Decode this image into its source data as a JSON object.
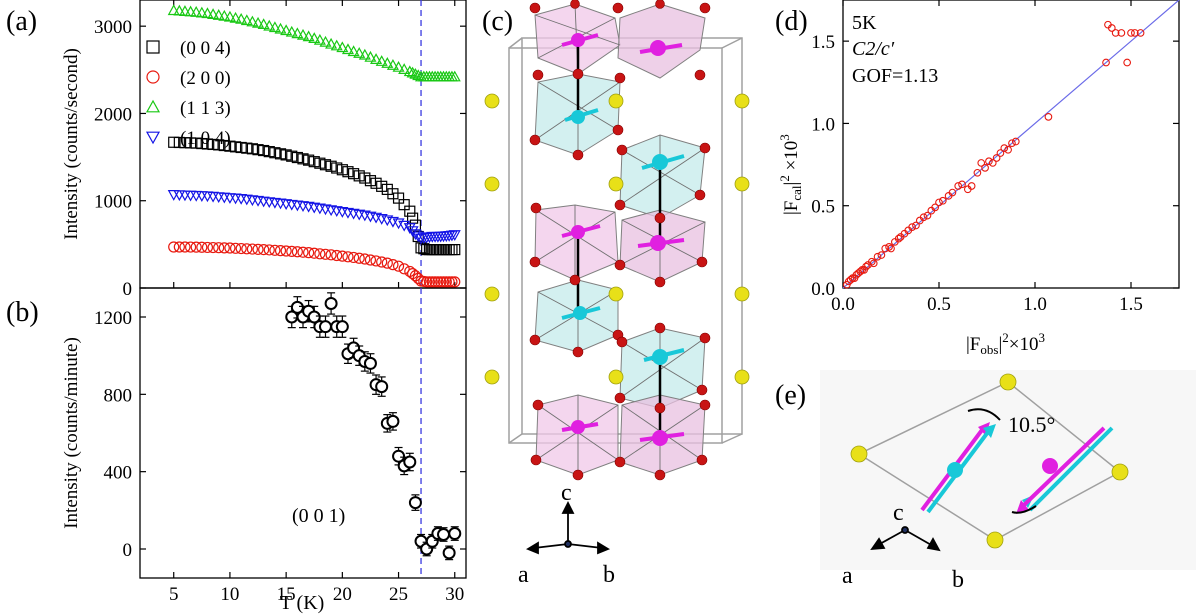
{
  "chart_data": [
    {
      "panel_label": "(a)",
      "type": "scatter",
      "xlim": [
        2,
        31
      ],
      "ylim": [
        0,
        3300
      ],
      "x_ticks": [
        "5",
        "10",
        "15",
        "20",
        "25",
        "30"
      ],
      "y_ticks": [
        "0",
        "1000",
        "2000",
        "3000"
      ],
      "ylabel": "Intensity (counts/second)",
      "vline_x": 27,
      "series": [
        {
          "name": "(0 0 4)",
          "marker": "square",
          "color": "#000000",
          "x": [
            5,
            6,
            7,
            8,
            9,
            10,
            11,
            12,
            13,
            14,
            15,
            16,
            17,
            18,
            19,
            20,
            21,
            22,
            23,
            24,
            25,
            26,
            26.5,
            27,
            27.5,
            28,
            28.5,
            29,
            29.5,
            30
          ],
          "y": [
            1670,
            1665,
            1660,
            1650,
            1640,
            1625,
            1610,
            1595,
            1575,
            1550,
            1525,
            1495,
            1465,
            1430,
            1395,
            1355,
            1310,
            1260,
            1200,
            1130,
            1030,
            880,
            720,
            460,
            440,
            440,
            440,
            440,
            440,
            440
          ]
        },
        {
          "name": "(2 0 0)",
          "marker": "circle",
          "color": "#e8190f",
          "x": [
            5,
            6,
            7,
            8,
            9,
            10,
            11,
            12,
            13,
            14,
            15,
            16,
            17,
            18,
            19,
            20,
            21,
            22,
            23,
            24,
            25,
            26,
            26.5,
            27,
            27.5,
            28,
            28.5,
            29,
            29.5,
            30
          ],
          "y": [
            470,
            470,
            468,
            465,
            462,
            458,
            452,
            446,
            440,
            432,
            424,
            415,
            405,
            392,
            380,
            365,
            350,
            332,
            310,
            285,
            250,
            190,
            140,
            80,
            70,
            70,
            70,
            70,
            70,
            70
          ]
        },
        {
          "name": "(1 1 3)",
          "marker": "triangle-up",
          "color": "#19c814",
          "x": [
            5,
            6,
            7,
            8,
            9,
            10,
            11,
            12,
            13,
            14,
            15,
            16,
            17,
            18,
            19,
            20,
            21,
            22,
            23,
            24,
            25,
            26,
            26.5,
            27,
            27.5,
            28,
            28.5,
            29,
            29.5,
            30
          ],
          "y": [
            3180,
            3170,
            3160,
            3145,
            3125,
            3105,
            3080,
            3050,
            3020,
            2985,
            2950,
            2915,
            2880,
            2840,
            2795,
            2755,
            2710,
            2670,
            2620,
            2575,
            2530,
            2480,
            2450,
            2420,
            2420,
            2420,
            2420,
            2420,
            2420,
            2420
          ]
        },
        {
          "name": "(1 0 4)",
          "marker": "triangle-down",
          "color": "#1414e6",
          "x": [
            5,
            6,
            7,
            8,
            9,
            10,
            11,
            12,
            13,
            14,
            15,
            16,
            17,
            18,
            19,
            20,
            21,
            22,
            23,
            24,
            25,
            26,
            26.5,
            27,
            27.5,
            28,
            28.5,
            29,
            29.5,
            30
          ],
          "y": [
            1070,
            1065,
            1060,
            1055,
            1045,
            1035,
            1025,
            1010,
            995,
            980,
            965,
            950,
            935,
            915,
            895,
            875,
            855,
            835,
            810,
            780,
            745,
            690,
            620,
            570,
            580,
            590,
            590,
            595,
            600,
            610
          ]
        }
      ]
    },
    {
      "panel_label": "(b)",
      "type": "scatter",
      "xlim": [
        2,
        31
      ],
      "ylim": [
        -150,
        1350
      ],
      "x_ticks": [
        "5",
        "10",
        "15",
        "20",
        "25",
        "30"
      ],
      "y_ticks": [
        "0",
        "400",
        "800",
        "1200"
      ],
      "xlabel": "T (K)",
      "ylabel": "Intensity (counts/minute)",
      "annotation": "(0 0 1)",
      "vline_x": 27,
      "series": [
        {
          "name": "(0 0 1)",
          "marker": "circle",
          "color": "#000000",
          "x": [
            15.5,
            16,
            16.5,
            17,
            17.5,
            18,
            18.5,
            19,
            19.5,
            20,
            20.5,
            21,
            21.5,
            22,
            22.5,
            23,
            23.5,
            24,
            24.5,
            25,
            25.5,
            26,
            26.5,
            27,
            27.5,
            28,
            28.5,
            29,
            29.5,
            30
          ],
          "y": [
            1200,
            1250,
            1200,
            1230,
            1200,
            1150,
            1150,
            1270,
            1150,
            1150,
            1010,
            1040,
            1000,
            970,
            960,
            850,
            840,
            650,
            660,
            480,
            430,
            450,
            240,
            40,
            0,
            40,
            80,
            75,
            -20,
            80
          ],
          "err": [
            55,
            55,
            55,
            55,
            55,
            55,
            55,
            55,
            55,
            55,
            50,
            50,
            50,
            50,
            50,
            50,
            50,
            45,
            45,
            45,
            45,
            45,
            40,
            35,
            35,
            35,
            35,
            35,
            35,
            35
          ]
        }
      ]
    },
    {
      "panel_label": "(d)",
      "type": "scatter",
      "xlim": [
        0,
        1.75
      ],
      "ylim": [
        0,
        1.75
      ],
      "x_ticks": [
        "0.0",
        "0.5",
        "1.0",
        "1.5"
      ],
      "y_ticks": [
        "0.0",
        "0.5",
        "1.0",
        "1.5"
      ],
      "legend_lines": [
        "5K",
        "C2/c′",
        "GOF=1.13"
      ],
      "color": "#e8190f",
      "fit_line_color": "#6a6ae8",
      "x": [
        0.02,
        0.03,
        0.04,
        0.05,
        0.06,
        0.07,
        0.08,
        0.09,
        0.1,
        0.11,
        0.12,
        0.13,
        0.15,
        0.16,
        0.18,
        0.2,
        0.22,
        0.24,
        0.25,
        0.27,
        0.29,
        0.3,
        0.32,
        0.34,
        0.36,
        0.38,
        0.4,
        0.42,
        0.44,
        0.46,
        0.48,
        0.5,
        0.52,
        0.55,
        0.57,
        0.6,
        0.62,
        0.65,
        0.67,
        0.7,
        0.72,
        0.74,
        0.76,
        0.78,
        0.8,
        0.82,
        0.84,
        0.86,
        0.88,
        0.9,
        1.07,
        1.37,
        1.38,
        1.4,
        1.42,
        1.45,
        1.5,
        1.52,
        1.48,
        1.55
      ],
      "y": [
        0.02,
        0.04,
        0.05,
        0.06,
        0.06,
        0.08,
        0.09,
        0.1,
        0.11,
        0.11,
        0.13,
        0.14,
        0.16,
        0.15,
        0.19,
        0.2,
        0.24,
        0.25,
        0.24,
        0.28,
        0.3,
        0.31,
        0.33,
        0.35,
        0.37,
        0.38,
        0.41,
        0.43,
        0.44,
        0.47,
        0.49,
        0.52,
        0.53,
        0.56,
        0.58,
        0.62,
        0.63,
        0.6,
        0.62,
        0.7,
        0.76,
        0.73,
        0.77,
        0.76,
        0.79,
        0.82,
        0.85,
        0.84,
        0.88,
        0.89,
        1.04,
        1.37,
        1.6,
        1.58,
        1.55,
        1.55,
        1.55,
        1.55,
        1.37,
        1.55
      ]
    }
  ],
  "labels": {
    "a": "(a)",
    "b": "(b)",
    "c": "(c)",
    "d": "(d)",
    "e": "(e)",
    "d_xlabel_main": "|F",
    "d_xlabel_sub": "obs",
    "d_xlabel_tail": "|",
    "d_xlabel_sup": "2",
    "d_xlabel_times": "×10",
    "d_xlabel_exp": "3",
    "d_ylabel_main": "|F",
    "d_ylabel_sub": "cal",
    "d_ylabel_tail": "|",
    "d_ylabel_sup": "2",
    "d_ylabel_times": " ×10",
    "d_ylabel_exp": "3",
    "axis_c": "c",
    "axis_a": "a",
    "axis_b": "b",
    "e_angle": "10.5°",
    "e_axis_c": "c",
    "e_axis_a": "a",
    "e_axis_b": "b"
  },
  "colors": {
    "magenta": "#e020e0",
    "cyan": "#18c8d8",
    "yellow": "#e8e018",
    "red_atom": "#c81414",
    "pink_poly": "#f0c8e8",
    "teal_poly": "#c8ecec"
  }
}
